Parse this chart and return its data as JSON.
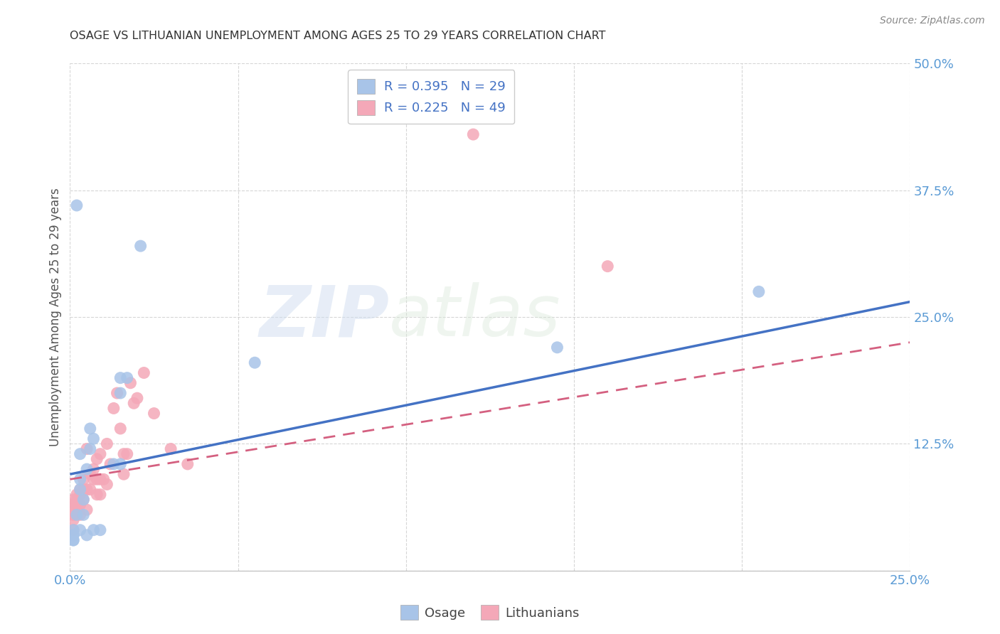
{
  "title": "OSAGE VS LITHUANIAN UNEMPLOYMENT AMONG AGES 25 TO 29 YEARS CORRELATION CHART",
  "source": "Source: ZipAtlas.com",
  "ylabel": "Unemployment Among Ages 25 to 29 years",
  "xlim": [
    0.0,
    0.25
  ],
  "ylim": [
    0.0,
    0.5
  ],
  "xticks": [
    0.0,
    0.05,
    0.1,
    0.15,
    0.2,
    0.25
  ],
  "yticks": [
    0.0,
    0.125,
    0.25,
    0.375,
    0.5
  ],
  "xticklabels": [
    "0.0%",
    "",
    "",
    "",
    "",
    "25.0%"
  ],
  "yticklabels": [
    "",
    "12.5%",
    "25.0%",
    "37.5%",
    "50.0%"
  ],
  "osage_color": "#a8c4e8",
  "lithuanian_color": "#f4a8b8",
  "osage_line_color": "#4472c4",
  "lithuanian_line_color": "#d46080",
  "background_color": "#ffffff",
  "tick_color": "#5b9bd5",
  "watermark_zip": "ZIP",
  "watermark_atlas": "atlas",
  "osage_x": [
    0.005,
    0.007,
    0.009,
    0.002,
    0.003,
    0.004,
    0.004,
    0.003,
    0.003,
    0.002,
    0.006,
    0.006,
    0.013,
    0.015,
    0.021,
    0.003,
    0.005,
    0.007,
    0.015,
    0.015,
    0.017,
    0.055,
    0.145,
    0.205,
    0.001,
    0.001,
    0.001,
    0.001,
    0.001
  ],
  "osage_y": [
    0.035,
    0.04,
    0.04,
    0.055,
    0.04,
    0.055,
    0.07,
    0.08,
    0.09,
    0.36,
    0.14,
    0.12,
    0.105,
    0.105,
    0.32,
    0.115,
    0.1,
    0.13,
    0.175,
    0.19,
    0.19,
    0.205,
    0.22,
    0.275,
    0.03,
    0.035,
    0.04,
    0.035,
    0.03
  ],
  "lithuanian_x": [
    0.001,
    0.001,
    0.001,
    0.001,
    0.001,
    0.001,
    0.002,
    0.002,
    0.002,
    0.002,
    0.003,
    0.003,
    0.003,
    0.003,
    0.004,
    0.004,
    0.004,
    0.005,
    0.005,
    0.005,
    0.006,
    0.006,
    0.007,
    0.007,
    0.008,
    0.008,
    0.008,
    0.009,
    0.009,
    0.009,
    0.01,
    0.011,
    0.011,
    0.012,
    0.013,
    0.014,
    0.015,
    0.016,
    0.016,
    0.017,
    0.018,
    0.019,
    0.02,
    0.022,
    0.025,
    0.03,
    0.035,
    0.12,
    0.16
  ],
  "lithuanian_y": [
    0.04,
    0.05,
    0.055,
    0.06,
    0.065,
    0.07,
    0.06,
    0.065,
    0.07,
    0.075,
    0.055,
    0.065,
    0.075,
    0.08,
    0.07,
    0.08,
    0.09,
    0.06,
    0.08,
    0.12,
    0.08,
    0.095,
    0.09,
    0.1,
    0.075,
    0.09,
    0.11,
    0.075,
    0.09,
    0.115,
    0.09,
    0.085,
    0.125,
    0.105,
    0.16,
    0.175,
    0.14,
    0.095,
    0.115,
    0.115,
    0.185,
    0.165,
    0.17,
    0.195,
    0.155,
    0.12,
    0.105,
    0.43,
    0.3
  ],
  "osage_line_x": [
    0.0,
    0.25
  ],
  "osage_line_y": [
    0.095,
    0.265
  ],
  "lith_line_x": [
    0.0,
    0.25
  ],
  "lith_line_y": [
    0.09,
    0.225
  ]
}
